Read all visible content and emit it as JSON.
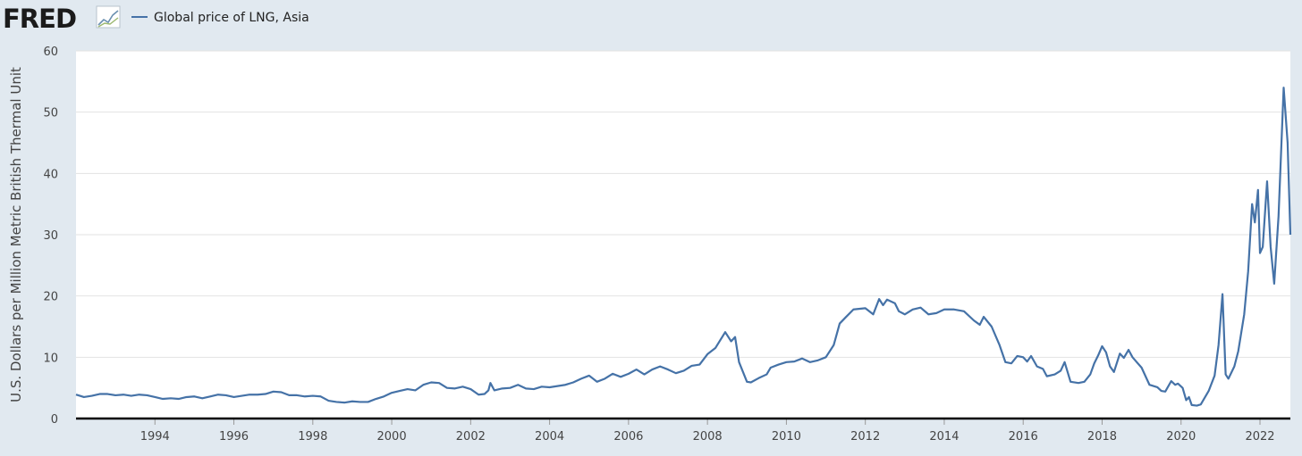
{
  "logo": "FRED",
  "chart_data": {
    "type": "line",
    "ylabel": "U.S. Dollars per Million Metric British Thermal Unit",
    "grid": true,
    "xlim": [
      1992,
      2022.77
    ],
    "xticks": [
      1994,
      1996,
      1998,
      2000,
      2002,
      2004,
      2006,
      2008,
      2010,
      2012,
      2014,
      2016,
      2018,
      2020,
      2022
    ],
    "ylim": [
      0,
      60
    ],
    "yticks": [
      0,
      10,
      20,
      30,
      40,
      50,
      60
    ],
    "x": [
      1992.0,
      1992.2,
      1992.4,
      1992.6,
      1992.8,
      1993.0,
      1993.2,
      1993.4,
      1993.6,
      1993.8,
      1994.0,
      1994.2,
      1994.4,
      1994.6,
      1994.8,
      1995.0,
      1995.2,
      1995.4,
      1995.6,
      1995.8,
      1996.0,
      1996.2,
      1996.4,
      1996.6,
      1996.8,
      1997.0,
      1997.2,
      1997.4,
      1997.6,
      1997.8,
      1998.0,
      1998.2,
      1998.4,
      1998.6,
      1998.8,
      1999.0,
      1999.2,
      1999.4,
      1999.6,
      1999.8,
      2000.0,
      2000.2,
      2000.4,
      2000.6,
      2000.8,
      2001.0,
      2001.2,
      2001.4,
      2001.6,
      2001.8,
      2002.0,
      2002.2,
      2002.35,
      2002.45,
      2002.5,
      2002.6,
      2002.8,
      2003.0,
      2003.2,
      2003.4,
      2003.6,
      2003.8,
      2004.0,
      2004.2,
      2004.4,
      2004.6,
      2004.8,
      2005.0,
      2005.2,
      2005.4,
      2005.6,
      2005.8,
      2006.0,
      2006.2,
      2006.4,
      2006.6,
      2006.8,
      2007.0,
      2007.2,
      2007.4,
      2007.6,
      2007.8,
      2008.0,
      2008.2,
      2008.45,
      2008.6,
      2008.7,
      2008.8,
      2009.0,
      2009.1,
      2009.3,
      2009.5,
      2009.6,
      2009.8,
      2010.0,
      2010.2,
      2010.4,
      2010.6,
      2010.8,
      2011.0,
      2011.2,
      2011.35,
      2011.5,
      2011.7,
      2012.0,
      2012.2,
      2012.35,
      2012.45,
      2012.55,
      2012.75,
      2012.85,
      2013.0,
      2013.2,
      2013.4,
      2013.6,
      2013.8,
      2014.0,
      2014.25,
      2014.5,
      2014.75,
      2014.9,
      2015.0,
      2015.2,
      2015.4,
      2015.55,
      2015.7,
      2015.85,
      2016.0,
      2016.1,
      2016.2,
      2016.35,
      2016.5,
      2016.6,
      2016.8,
      2016.95,
      2017.05,
      2017.2,
      2017.4,
      2017.55,
      2017.7,
      2017.8,
      2017.9,
      2018.0,
      2018.1,
      2018.2,
      2018.3,
      2018.45,
      2018.55,
      2018.67,
      2018.77,
      2018.85,
      2019.0,
      2019.2,
      2019.4,
      2019.5,
      2019.6,
      2019.75,
      2019.85,
      2019.92,
      2020.04,
      2020.13,
      2020.2,
      2020.27,
      2020.4,
      2020.5,
      2020.7,
      2020.85,
      2020.95,
      2021.05,
      2021.13,
      2021.2,
      2021.35,
      2021.45,
      2021.6,
      2021.7,
      2021.8,
      2021.87,
      2021.95,
      2022.0,
      2022.07,
      2022.18,
      2022.27,
      2022.36,
      2022.47,
      2022.6,
      2022.7,
      2022.77
    ],
    "series": [
      {
        "name": "Global price of LNG, Asia",
        "color": "#4572a7",
        "values": [
          3.9,
          3.5,
          3.7,
          4.0,
          4.0,
          3.8,
          3.9,
          3.7,
          3.9,
          3.8,
          3.5,
          3.2,
          3.3,
          3.2,
          3.5,
          3.6,
          3.3,
          3.6,
          3.9,
          3.8,
          3.5,
          3.7,
          3.9,
          3.9,
          4.0,
          4.4,
          4.3,
          3.8,
          3.8,
          3.6,
          3.7,
          3.6,
          2.9,
          2.7,
          2.6,
          2.8,
          2.7,
          2.7,
          3.2,
          3.6,
          4.2,
          4.5,
          4.8,
          4.6,
          5.5,
          5.9,
          5.8,
          5.0,
          4.9,
          5.2,
          4.8,
          3.9,
          4.0,
          4.6,
          5.8,
          4.6,
          4.9,
          5.0,
          5.5,
          4.9,
          4.8,
          5.2,
          5.1,
          5.3,
          5.5,
          5.9,
          6.5,
          7.0,
          6.0,
          6.5,
          7.3,
          6.8,
          7.3,
          8.0,
          7.2,
          8.0,
          8.5,
          8.0,
          7.4,
          7.8,
          8.6,
          8.8,
          10.5,
          11.5,
          14.1,
          12.6,
          13.3,
          9.2,
          6.0,
          5.9,
          6.6,
          7.2,
          8.3,
          8.8,
          9.2,
          9.3,
          9.8,
          9.2,
          9.5,
          10.0,
          12.0,
          15.5,
          16.5,
          17.8,
          18.0,
          17.0,
          19.5,
          18.5,
          19.4,
          18.8,
          17.5,
          17.0,
          17.8,
          18.1,
          17.0,
          17.2,
          17.8,
          17.8,
          17.5,
          16.0,
          15.3,
          16.6,
          15.0,
          12.0,
          9.2,
          9.0,
          10.2,
          10.0,
          9.3,
          10.2,
          8.5,
          8.1,
          6.9,
          7.2,
          7.8,
          9.2,
          6.0,
          5.8,
          6.0,
          7.2,
          9.0,
          10.3,
          11.8,
          10.8,
          8.5,
          7.6,
          10.6,
          9.9,
          11.2,
          10.0,
          9.4,
          8.3,
          5.5,
          5.1,
          4.5,
          4.4,
          6.1,
          5.5,
          5.7,
          5.0,
          3.0,
          3.5,
          2.2,
          2.1,
          2.3,
          4.5,
          7.0,
          12.0,
          20.3,
          7.2,
          6.5,
          8.5,
          11.0,
          17.0,
          24.0,
          35.0,
          32.0,
          37.3,
          27.0,
          28.0,
          38.7,
          28.0,
          22.0,
          33.0,
          54.0,
          45.0,
          30.0
        ]
      }
    ]
  }
}
